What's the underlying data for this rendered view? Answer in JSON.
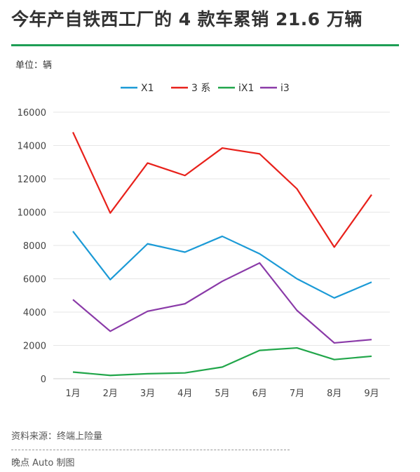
{
  "header": {
    "title": "今年产自铁西工厂的 4 款车累销 21.6 万辆",
    "unit": "单位：辆"
  },
  "footer": {
    "source": "资料来源：终端上险量",
    "maker": "晚点 Auto 制图"
  },
  "colors": {
    "accent": "#1e9e55",
    "X1": "#1b9ad6",
    "3系": "#e8211b",
    "iX1": "#21a64a",
    "i3": "#8a3aa8"
  },
  "chart_data": {
    "type": "line",
    "title": "今年产自铁西工厂的 4 款车累销 21.6 万辆",
    "ylabel": "单位：辆",
    "xlabel": "",
    "categories": [
      "1月",
      "2月",
      "3月",
      "4月",
      "5月",
      "6月",
      "7月",
      "8月",
      "9月"
    ],
    "ylim": [
      0,
      16000
    ],
    "yticks": [
      0,
      2000,
      4000,
      6000,
      8000,
      10000,
      12000,
      14000,
      16000
    ],
    "grid": true,
    "legend_position": "top",
    "series": [
      {
        "name": "X1",
        "color": "#1b9ad6",
        "values": [
          8850,
          5950,
          8100,
          7600,
          8550,
          7500,
          6000,
          4850,
          5800
        ]
      },
      {
        "name": "3 系",
        "color": "#e8211b",
        "values": [
          14800,
          9950,
          12950,
          12200,
          13850,
          13500,
          11400,
          7900,
          11050
        ]
      },
      {
        "name": "iX1",
        "color": "#21a64a",
        "values": [
          400,
          200,
          300,
          350,
          700,
          1700,
          1850,
          1150,
          1350
        ]
      },
      {
        "name": "i3",
        "color": "#8a3aa8",
        "values": [
          4750,
          2850,
          4050,
          4500,
          5850,
          6950,
          4100,
          2150,
          2350
        ]
      }
    ]
  }
}
